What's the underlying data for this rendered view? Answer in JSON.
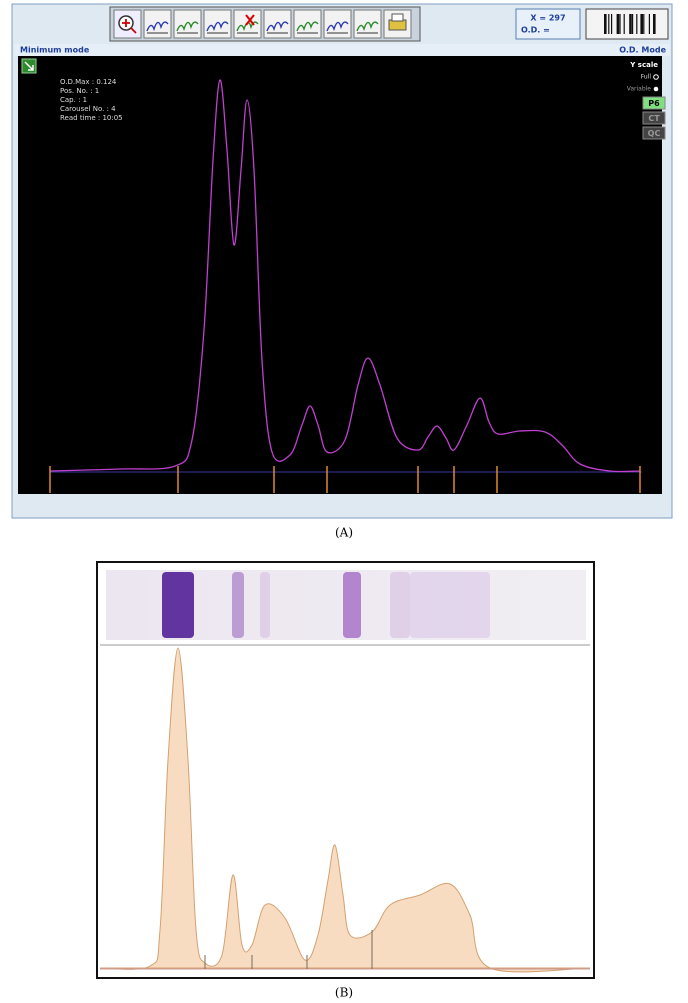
{
  "toolbar": {
    "cursor_x": "X = 297",
    "cursor_od": "O.D. ="
  },
  "panel_a": {
    "label": "(A)",
    "mode_left": "Minimum mode",
    "mode_right": "O.D. Mode",
    "info": [
      "O.D.Max : 0.124",
      "Pos. No. : 1",
      "Cap. : 1",
      "Carousel No. : 4",
      "Read time : 10:05"
    ],
    "y_scale": {
      "title": "Y scale",
      "options": [
        "Full",
        "Variable"
      ]
    },
    "buttons": [
      "P6",
      "CT",
      "QC"
    ]
  },
  "panel_b": {
    "label": "(B)"
  }
}
